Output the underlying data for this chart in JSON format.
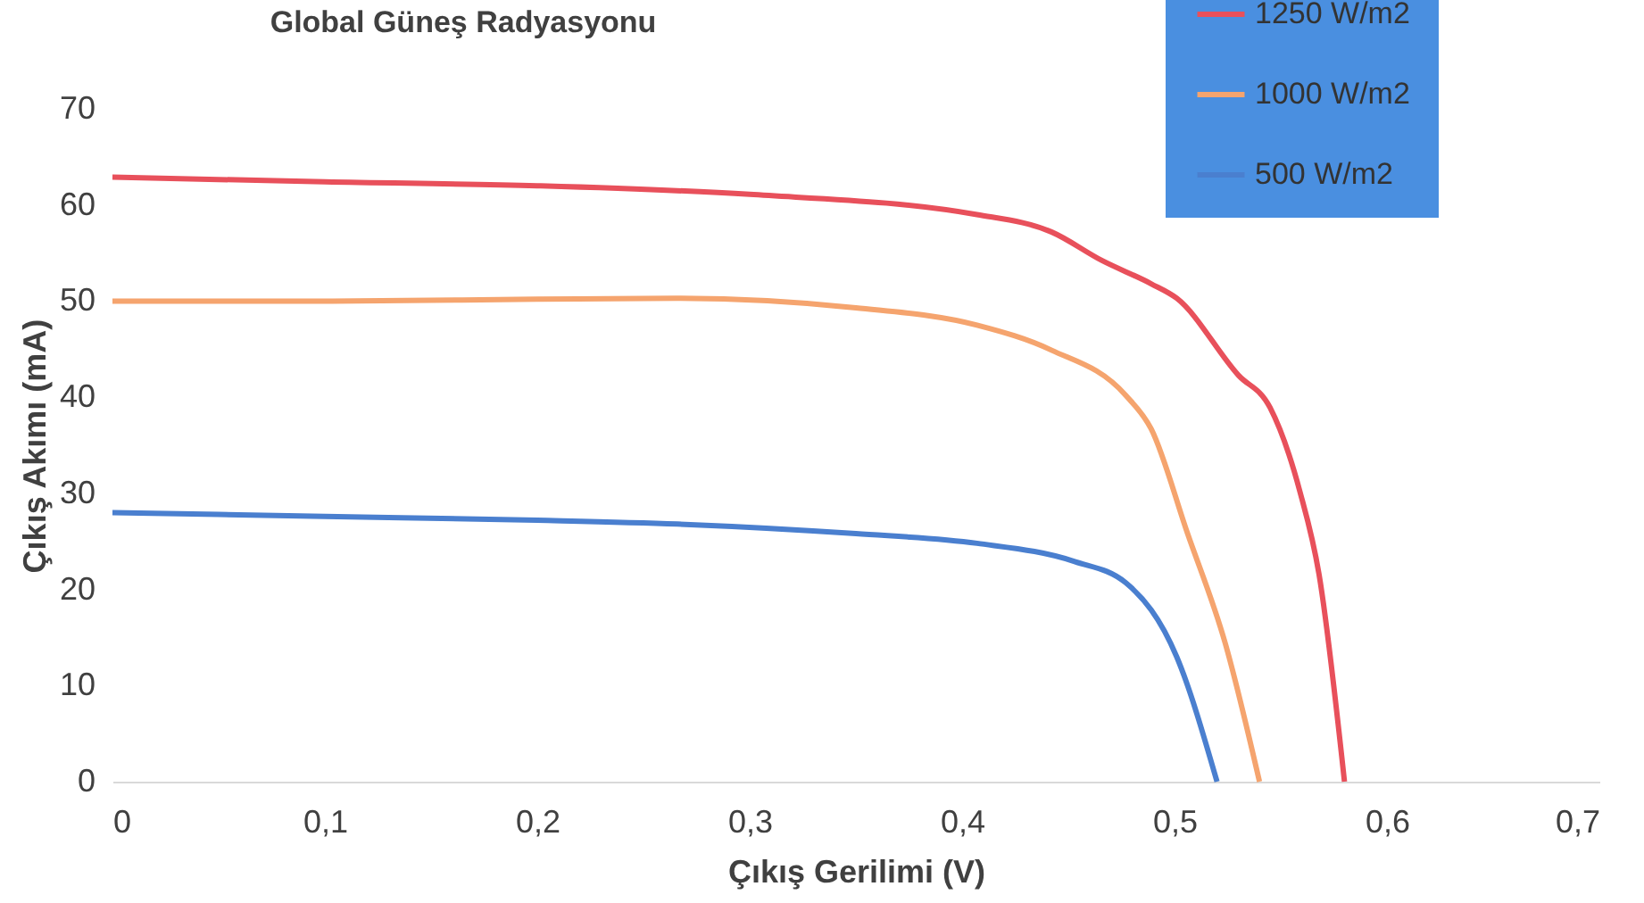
{
  "chart_data": {
    "type": "line",
    "title": "Global Güneş Radyasyonu",
    "xlabel": "Çıkış Gerilimi (V)",
    "ylabel": "Çıkış Akımı (mA)",
    "series": [
      {
        "name": "1250 W/m2",
        "color": "#e8505b",
        "x": [
          0,
          0.1,
          0.2,
          0.3,
          0.407,
          0.442,
          0.466,
          0.489,
          0.501,
          0.53,
          0.545,
          0.559,
          0.568,
          0.58
        ],
        "values": [
          62.9,
          62.4,
          62.0,
          61.1,
          59.0,
          57.2,
          54.2,
          51.8,
          50.3,
          42.3,
          38.9,
          30.2,
          21.6,
          0
        ]
      },
      {
        "name": "1000 W/m2",
        "color": "#f5a46e",
        "x": [
          0,
          0.1,
          0.2,
          0.266,
          0.35,
          0.407,
          0.442,
          0.477,
          0.489,
          0.506,
          0.524,
          0.54
        ],
        "values": [
          50.0,
          50.0,
          50.2,
          50.3,
          49.3,
          47.5,
          44.9,
          40.2,
          36.7,
          25.9,
          14.3,
          0
        ]
      },
      {
        "name": "500 W/m2",
        "color": "#4a7fcf",
        "x": [
          0,
          0.1,
          0.2,
          0.266,
          0.35,
          0.407,
          0.453,
          0.477,
          0.501,
          0.52
        ],
        "values": [
          28.0,
          27.6,
          27.2,
          26.8,
          25.8,
          24.8,
          22.9,
          20.7,
          13.0,
          0
        ]
      }
    ],
    "xlim": [
      0,
      0.7
    ],
    "ylim": [
      0,
      70
    ],
    "xticks": [
      0,
      {
        "value": 0.1,
        "label": "0,1"
      },
      {
        "value": 0.2,
        "label": "0,2"
      },
      {
        "value": 0.3,
        "label": "0,3"
      },
      {
        "value": 0.4,
        "label": "0,4"
      },
      {
        "value": 0.5,
        "label": "0,5"
      },
      {
        "value": 0.6,
        "label": "0,6"
      },
      {
        "value": 0.7,
        "label": "0,7"
      }
    ],
    "yticks": [
      0,
      10,
      20,
      30,
      40,
      50,
      60,
      70
    ],
    "grid": false,
    "legend": "top right",
    "line_style": "solid",
    "marker": "none"
  }
}
